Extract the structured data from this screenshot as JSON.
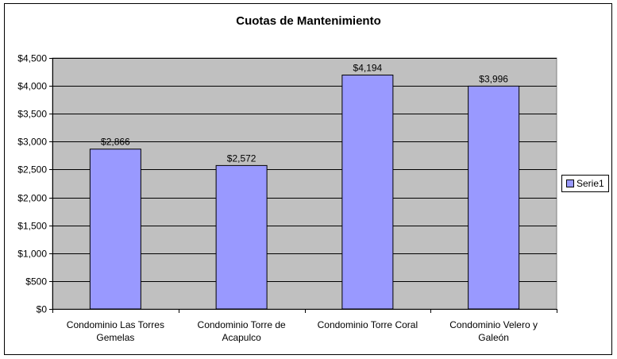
{
  "chart_data": {
    "type": "bar",
    "title": "Cuotas de Mantenimiento",
    "categories": [
      [
        "Condominio Las Torres",
        "Gemelas"
      ],
      [
        "Condominio Torre de",
        "Acapulco"
      ],
      [
        "Condominio Torre Coral"
      ],
      [
        "Condominio Velero y",
        "Galeón"
      ]
    ],
    "series": [
      {
        "name": "Serie1",
        "values": [
          2866,
          2572,
          4194,
          3996
        ]
      }
    ],
    "data_labels": [
      "$2,866",
      "$2,572",
      "$4,194",
      "$3,996"
    ],
    "ylim": [
      0,
      4500
    ],
    "y_ticks": [
      0,
      500,
      1000,
      1500,
      2000,
      2500,
      3000,
      3500,
      4000,
      4500
    ],
    "y_tick_labels": [
      "$0",
      "$500",
      "$1,000",
      "$1,500",
      "$2,000",
      "$2,500",
      "$3,000",
      "$3,500",
      "$4,000",
      "$4,500"
    ],
    "grid": true,
    "legend_position": "right",
    "colors": {
      "bar": "#9999FF",
      "plot_background": "#C0C0C0",
      "gridline": "#000000"
    }
  }
}
